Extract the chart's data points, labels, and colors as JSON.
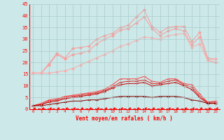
{
  "xlabel": "Vent moyen/en rafales ( km/h )",
  "bg_color": "#cce8e8",
  "grid_color": "#aacccc",
  "x": [
    0,
    1,
    2,
    3,
    4,
    5,
    6,
    7,
    8,
    9,
    10,
    11,
    12,
    13,
    14,
    15,
    16,
    17,
    18,
    19,
    20,
    21,
    22,
    23
  ],
  "series": [
    {
      "color": "#ff9999",
      "marker": "D",
      "markersize": 1.8,
      "linewidth": 0.7,
      "y": [
        15.5,
        15.5,
        19.5,
        24.0,
        22.0,
        26.0,
        26.5,
        27.0,
        30.0,
        31.5,
        32.5,
        35.0,
        36.0,
        39.5,
        42.5,
        35.5,
        33.0,
        35.0,
        35.5,
        35.5,
        29.0,
        33.0,
        22.0,
        21.5
      ]
    },
    {
      "color": "#ff9999",
      "marker": "D",
      "markersize": 1.8,
      "linewidth": 0.7,
      "y": [
        15.5,
        15.5,
        19.0,
        23.5,
        21.5,
        23.5,
        24.0,
        25.0,
        28.0,
        30.0,
        31.5,
        34.0,
        34.5,
        37.0,
        39.5,
        34.5,
        31.5,
        33.5,
        34.5,
        33.5,
        27.5,
        31.0,
        21.0,
        20.0
      ]
    },
    {
      "color": "#ffaaaa",
      "marker": "D",
      "markersize": 1.8,
      "linewidth": 0.7,
      "y": [
        15.5,
        15.5,
        15.5,
        16.0,
        16.5,
        17.5,
        19.0,
        20.5,
        22.0,
        23.5,
        25.0,
        27.0,
        28.0,
        29.5,
        31.0,
        30.5,
        30.0,
        31.5,
        32.0,
        32.5,
        26.5,
        28.0,
        21.0,
        21.5
      ]
    },
    {
      "color": "#ff4444",
      "marker": "+",
      "markersize": 2.5,
      "linewidth": 0.7,
      "y": [
        1.5,
        2.5,
        4.0,
        4.5,
        5.5,
        6.0,
        6.5,
        7.0,
        7.5,
        8.5,
        10.5,
        13.0,
        13.0,
        13.0,
        14.0,
        12.0,
        11.5,
        13.0,
        13.0,
        11.0,
        10.5,
        6.5,
        3.0,
        3.5
      ]
    },
    {
      "color": "#dd2222",
      "marker": "+",
      "markersize": 2.5,
      "linewidth": 0.7,
      "y": [
        1.5,
        2.0,
        3.5,
        4.0,
        5.0,
        5.5,
        6.0,
        6.5,
        7.0,
        8.0,
        9.5,
        11.5,
        12.0,
        12.0,
        12.5,
        11.0,
        11.0,
        12.0,
        12.5,
        10.5,
        9.5,
        5.5,
        3.0,
        3.0
      ]
    },
    {
      "color": "#cc0000",
      "marker": "+",
      "markersize": 2.5,
      "linewidth": 0.7,
      "y": [
        1.5,
        2.0,
        3.0,
        3.5,
        4.5,
        5.0,
        5.5,
        6.0,
        6.5,
        7.5,
        9.0,
        10.5,
        11.0,
        11.0,
        11.5,
        10.0,
        10.5,
        11.0,
        11.5,
        10.0,
        8.5,
        5.0,
        2.5,
        2.5
      ]
    },
    {
      "color": "#880000",
      "marker": "+",
      "markersize": 2.5,
      "linewidth": 0.7,
      "y": [
        1.5,
        1.5,
        2.0,
        2.5,
        3.0,
        3.5,
        3.5,
        4.0,
        4.0,
        4.5,
        5.0,
        5.5,
        5.5,
        5.5,
        5.5,
        5.0,
        5.5,
        5.5,
        5.5,
        5.0,
        4.0,
        3.5,
        2.5,
        2.5
      ]
    },
    {
      "color": "#ff0000",
      "marker": 4,
      "markersize": 3.0,
      "linewidth": 0.7,
      "dashed": true,
      "y": [
        0.3,
        0.3,
        0.3,
        0.3,
        0.3,
        0.3,
        0.3,
        0.3,
        0.3,
        0.3,
        0.3,
        0.3,
        0.3,
        0.3,
        0.3,
        0.3,
        0.3,
        0.3,
        0.3,
        0.3,
        0.3,
        0.3,
        0.3,
        0.3
      ]
    }
  ],
  "ylim": [
    0,
    45
  ],
  "yticks": [
    0,
    5,
    10,
    15,
    20,
    25,
    30,
    35,
    40,
    45
  ],
  "xticks": [
    0,
    1,
    2,
    3,
    4,
    5,
    6,
    7,
    8,
    9,
    10,
    11,
    12,
    13,
    14,
    15,
    16,
    17,
    18,
    19,
    20,
    21,
    22,
    23
  ],
  "xlabel_fontsize": 5.5,
  "ytick_fontsize": 5.0,
  "xtick_fontsize": 4.2
}
